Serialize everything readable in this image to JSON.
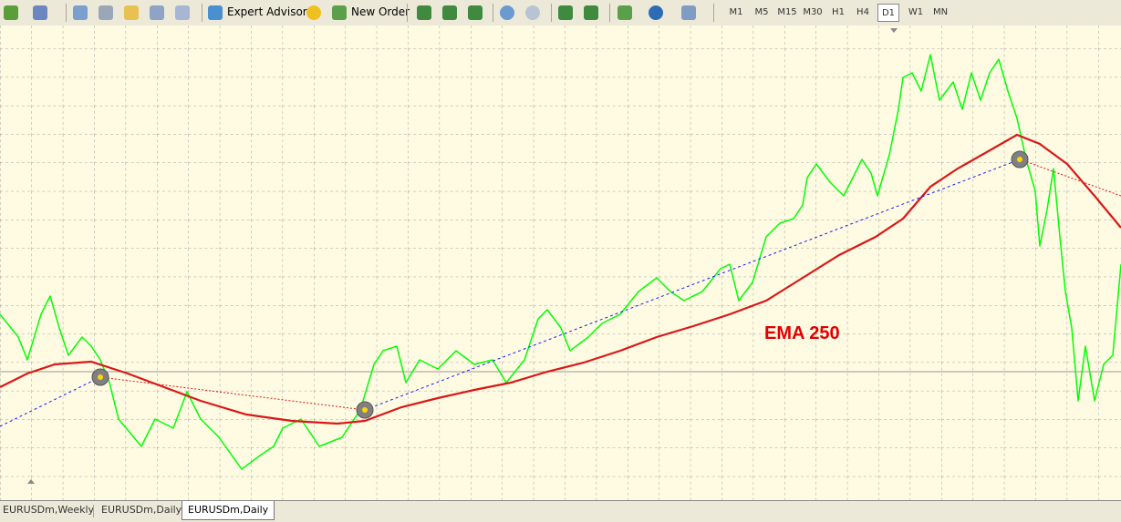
{
  "toolbar": {
    "expert_advisors": "Expert Advisors",
    "new_order": "New Order",
    "timeframes": [
      "M1",
      "M5",
      "M15",
      "M30",
      "H1",
      "H4",
      "D1",
      "W1",
      "MN"
    ]
  },
  "chart": {
    "annotation": "EMA 250"
  },
  "tabs": [
    "EURUSDm,Weekly",
    "EURUSDm,Daily",
    "EURUSDm,Daily"
  ]
}
